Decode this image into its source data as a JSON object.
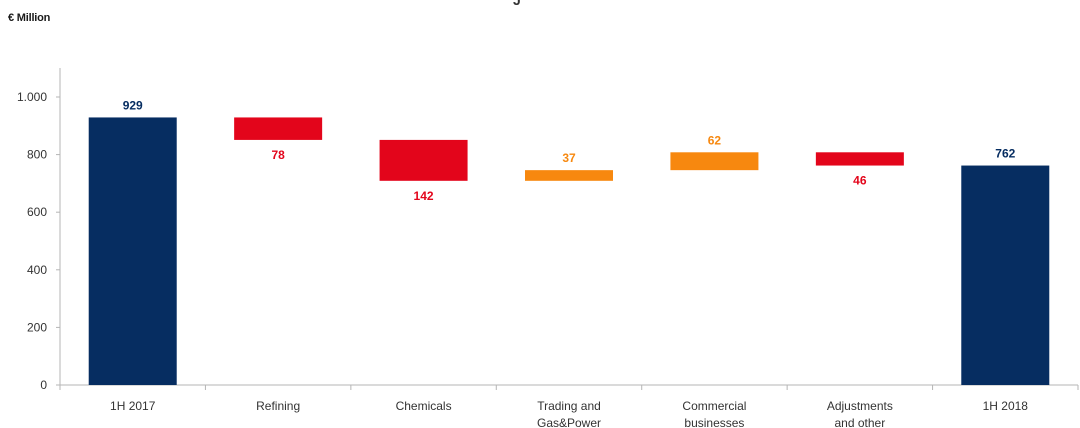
{
  "header": {
    "unit_label": "€ Million",
    "top_fragment": "J"
  },
  "chart_data": {
    "type": "bar",
    "variant": "waterfall",
    "title": "",
    "ylabel": "€ Million",
    "xlabel": "",
    "ylim": [
      0,
      1000
    ],
    "yticks": [
      0,
      200,
      400,
      600,
      800,
      1000
    ],
    "ytick_labels": [
      "0",
      "200",
      "400",
      "600",
      "800",
      "1.000"
    ],
    "grid": false,
    "legend": "none",
    "colors": {
      "total": "#062d61",
      "decrease": "#e3051b",
      "increase": "#f7880f"
    },
    "bars": [
      {
        "category_lines": [
          "1H 2017"
        ],
        "kind": "total",
        "start": 0,
        "end": 929,
        "label": "929"
      },
      {
        "category_lines": [
          "Refining"
        ],
        "kind": "decrease",
        "start": 929,
        "end": 851,
        "label": "78"
      },
      {
        "category_lines": [
          "Chemicals"
        ],
        "kind": "decrease",
        "start": 851,
        "end": 709,
        "label": "142"
      },
      {
        "category_lines": [
          "Trading and",
          "Gas&Power"
        ],
        "kind": "increase",
        "start": 709,
        "end": 746,
        "label": "37"
      },
      {
        "category_lines": [
          "Commercial",
          "businesses"
        ],
        "kind": "increase",
        "start": 746,
        "end": 808,
        "label": "62"
      },
      {
        "category_lines": [
          "Adjustments",
          "and other"
        ],
        "kind": "decrease",
        "start": 808,
        "end": 762,
        "label": "46"
      },
      {
        "category_lines": [
          "1H 2018"
        ],
        "kind": "total",
        "start": 0,
        "end": 762,
        "label": "762"
      }
    ]
  }
}
